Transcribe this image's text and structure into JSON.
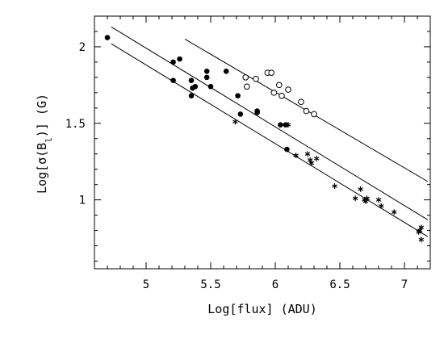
{
  "chart_data": {
    "type": "scatter",
    "title": "",
    "xlabel": "Log[flux] (ADU)",
    "ylabel_parts": {
      "prefix": "Log[σ(B",
      "subscript": "l",
      "suffix": ")] (G)"
    },
    "xlim": [
      4.6,
      7.2
    ],
    "ylim": [
      0.55,
      2.2
    ],
    "x_ticks": [
      5,
      5.5,
      6,
      6.5,
      7
    ],
    "x_tick_labels": [
      "5",
      "5.5",
      "6",
      "6.5",
      "7"
    ],
    "y_ticks": [
      1,
      1.5,
      2
    ],
    "y_tick_labels": [
      "1",
      "1.5",
      "2"
    ],
    "grid": false,
    "legend": "none",
    "series": [
      {
        "marker": "filled-circle",
        "points": [
          [
            4.7,
            2.06
          ],
          [
            5.21,
            1.9
          ],
          [
            5.26,
            1.92
          ],
          [
            5.21,
            1.78
          ],
          [
            5.35,
            1.78
          ],
          [
            5.36,
            1.73
          ],
          [
            5.38,
            1.74
          ],
          [
            5.35,
            1.68
          ],
          [
            5.47,
            1.84
          ],
          [
            5.47,
            1.8
          ],
          [
            5.5,
            1.74
          ],
          [
            5.62,
            1.84
          ],
          [
            5.71,
            1.68
          ],
          [
            5.73,
            1.56
          ],
          [
            5.86,
            1.57
          ],
          [
            5.86,
            1.58
          ],
          [
            6.04,
            1.49
          ],
          [
            6.08,
            1.49
          ],
          [
            6.09,
            1.33
          ]
        ]
      },
      {
        "marker": "open-circle",
        "points": [
          [
            5.77,
            1.8
          ],
          [
            5.78,
            1.74
          ],
          [
            5.85,
            1.79
          ],
          [
            5.94,
            1.83
          ],
          [
            5.97,
            1.83
          ],
          [
            5.99,
            1.7
          ],
          [
            6.03,
            1.75
          ],
          [
            6.05,
            1.68
          ],
          [
            6.1,
            1.72
          ],
          [
            6.2,
            1.64
          ],
          [
            6.24,
            1.58
          ],
          [
            6.3,
            1.56
          ]
        ]
      },
      {
        "marker": "asterisk",
        "points": [
          [
            5.69,
            1.51
          ],
          [
            6.1,
            1.49
          ],
          [
            6.16,
            1.29
          ],
          [
            6.25,
            1.3
          ],
          [
            6.27,
            1.26
          ],
          [
            6.28,
            1.24
          ],
          [
            6.32,
            1.27
          ],
          [
            6.46,
            1.09
          ],
          [
            6.62,
            1.01
          ],
          [
            6.66,
            1.07
          ],
          [
            6.69,
            1.0
          ],
          [
            6.7,
            0.99
          ],
          [
            6.71,
            1.01
          ],
          [
            6.8,
            1.0
          ],
          [
            6.82,
            0.96
          ],
          [
            6.92,
            0.92
          ],
          [
            7.11,
            0.79
          ],
          [
            7.12,
            0.8
          ],
          [
            7.13,
            0.82
          ],
          [
            7.13,
            0.74
          ]
        ]
      }
    ],
    "fit_lines": [
      {
        "from": [
          4.73,
          2.13
        ],
        "to": [
          7.18,
          0.87
        ]
      },
      {
        "from": [
          5.3,
          2.05
        ],
        "to": [
          7.18,
          1.12
        ]
      },
      {
        "from": [
          4.73,
          2.02
        ],
        "to": [
          7.18,
          0.76
        ]
      }
    ]
  }
}
